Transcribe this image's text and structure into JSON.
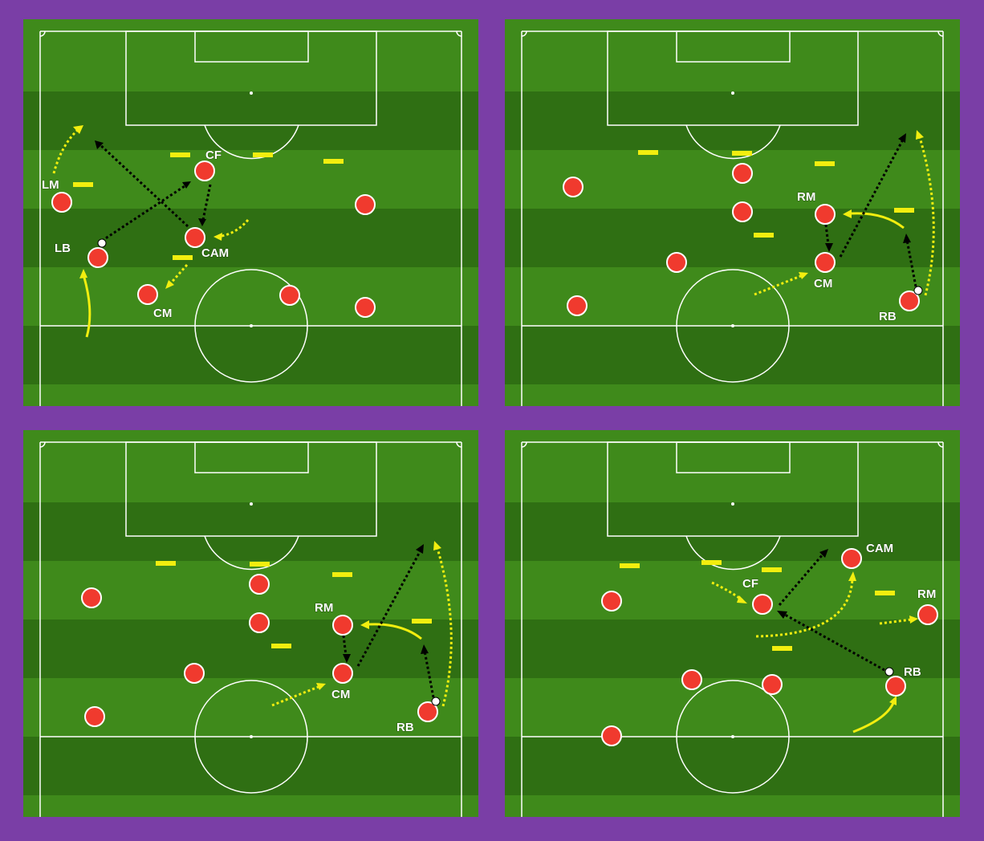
{
  "colors": {
    "background": "#7a3ea6",
    "pitch_light": "#3f8a1b",
    "pitch_dark": "#2f6f13",
    "line": "#ffffff",
    "player": "#f03a2e",
    "defender_marker": "#f2ee0f",
    "pass_run": "#000000",
    "movement": "#f2ee0f"
  },
  "panels": [
    {
      "id": "panel-1",
      "labels": {
        "lm": "LM",
        "cf": "CF",
        "lb": "LB",
        "cam": "CAM",
        "cm": "CM"
      }
    },
    {
      "id": "panel-2",
      "labels": {
        "rm": "RM",
        "cm": "CM",
        "rb": "RB"
      }
    },
    {
      "id": "panel-3",
      "labels": {
        "rm": "RM",
        "cm": "CM",
        "rb": "RB"
      }
    },
    {
      "id": "panel-4",
      "labels": {
        "cam": "CAM",
        "cf": "CF",
        "rm": "RM",
        "rb": "RB"
      }
    }
  ]
}
